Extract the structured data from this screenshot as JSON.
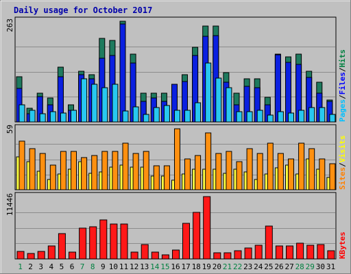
{
  "chart_data": {
    "type": "bar",
    "title": "Daily usage for October 2017",
    "categories": [
      "1",
      "2",
      "3",
      "4",
      "5",
      "6",
      "7",
      "8",
      "9",
      "10",
      "11",
      "12",
      "13",
      "14",
      "15",
      "16",
      "17",
      "18",
      "19",
      "20",
      "21",
      "22",
      "23",
      "24",
      "25",
      "26",
      "27",
      "28",
      "29",
      "30",
      "31"
    ],
    "weekend_days": [
      "1",
      "7",
      "8",
      "14",
      "15",
      "21",
      "22",
      "28",
      "29"
    ],
    "panels": [
      {
        "name": "hits-files-pages",
        "max_label": "263",
        "ymax": 263,
        "legend": [
          {
            "text": "Pages",
            "color": "#00c0ff"
          },
          {
            "text": "/",
            "color": "#000000"
          },
          {
            "text": "Files",
            "color": "#0000ff"
          },
          {
            "text": "/",
            "color": "#000000"
          },
          {
            "text": "Hits",
            "color": "#008040"
          }
        ],
        "series": [
          {
            "name": "Hits",
            "color": "#1e7a5e",
            "values": [
              118,
              35,
              76,
              63,
              143,
              44,
              133,
              124,
              219,
              213,
              263,
              178,
              75,
              75,
              75,
              75,
              123,
              195,
              250,
              250,
              128,
              75,
              112,
              112,
              65,
              178,
              170,
              178,
              133,
              104,
              57
            ]
          },
          {
            "name": "Files",
            "color": "#0a20e0",
            "values": [
              88,
              21,
              66,
              45,
              118,
              31,
              123,
              113,
              166,
              173,
              256,
              153,
              54,
              63,
              54,
              98,
              105,
              173,
              223,
              225,
              104,
              44,
              93,
              90,
              44,
              176,
              155,
              151,
              116,
              76,
              54
            ]
          },
          {
            "name": "Pages",
            "color": "#28c8f0",
            "values": [
              45,
              31,
              21,
              26,
              24,
              31,
              113,
              98,
              90,
              98,
              28,
              40,
              19,
              37,
              43,
              31,
              31,
              50,
              153,
              115,
              90,
              26,
              26,
              31,
              17,
              26,
              24,
              31,
              38,
              38,
              20
            ]
          }
        ]
      },
      {
        "name": "visits-sites",
        "max_label": "59",
        "ymax": 59,
        "legend": [
          {
            "text": "Sites",
            "color": "#ff8000"
          },
          {
            "text": "/",
            "color": "#000000"
          },
          {
            "text": "Visits",
            "color": "#ffff00"
          }
        ],
        "series": [
          {
            "name": "Visits",
            "color": "#ffff40",
            "values": [
              32,
              27,
              18,
              10,
              15,
              20,
              27,
              16,
              17,
              22,
              24,
              22,
              22,
              13,
              13,
              9,
              15,
              20,
              20,
              20,
              16,
              20,
              17,
              10,
              15,
              21,
              24,
              15,
              30,
              20,
              12
            ]
          },
          {
            "name": "Sites",
            "color": "#ff9010",
            "values": [
              47,
              40,
              35,
              24,
              37,
              37,
              31,
              33,
              37,
              37,
              45,
              35,
              37,
              23,
              23,
              59,
              30,
              33,
              55,
              35,
              37,
              27,
              40,
              35,
              45,
              35,
              30,
              45,
              40,
              30,
              25
            ]
          }
        ]
      },
      {
        "name": "kbytes",
        "max_label": "11446",
        "ymax": 11446,
        "legend": [
          {
            "text": "KBytes",
            "color": "#ff0000"
          }
        ],
        "series": [
          {
            "name": "KBytes",
            "color": "#ff1818",
            "values": [
              1400,
              1000,
              1400,
              2400,
              4700,
              1200,
              5700,
              5900,
              7200,
              6400,
              6400,
              1200,
              2700,
              1200,
              800,
              1600,
              6500,
              8600,
              11446,
              1100,
              1100,
              1500,
              2000,
              2500,
              6000,
              2400,
              2400,
              2900,
              2500,
              2700,
              1500
            ]
          }
        ]
      }
    ]
  }
}
